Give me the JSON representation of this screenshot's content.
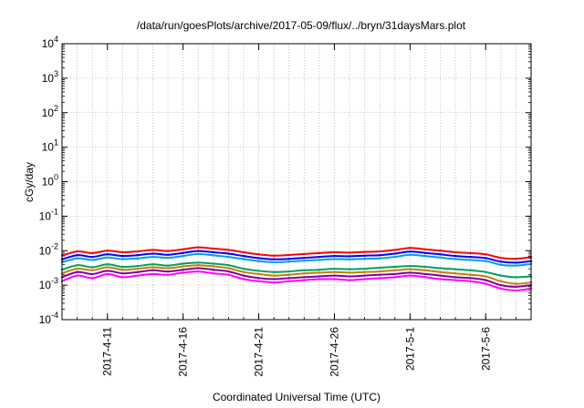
{
  "chart_data": {
    "type": "line",
    "title": "/data/run/goesPlots/archive/2017-05-09/flux/../bryn/31daysMars.plot",
    "xlabel": "Coordinated Universal Time (UTC)",
    "ylabel": "cGy/day",
    "yscale": "log",
    "ylim": [
      0.0001,
      10000
    ],
    "y_ticks": [
      {
        "value": 0.0001,
        "base": "10",
        "exp": "-4"
      },
      {
        "value": 0.001,
        "base": "10",
        "exp": "-3"
      },
      {
        "value": 0.01,
        "base": "10",
        "exp": "-2"
      },
      {
        "value": 0.1,
        "base": "10",
        "exp": "-1"
      },
      {
        "value": 1,
        "base": "10",
        "exp": "0"
      },
      {
        "value": 10,
        "base": "10",
        "exp": "1"
      },
      {
        "value": 100,
        "base": "10",
        "exp": "2"
      },
      {
        "value": 1000,
        "base": "10",
        "exp": "3"
      },
      {
        "value": 10000,
        "base": "10",
        "exp": "4"
      }
    ],
    "xlim": [
      "2017-04-08",
      "2017-05-09"
    ],
    "x_ticks": [
      "2017-4-11",
      "2017-4-16",
      "2017-4-21",
      "2017-4-26",
      "2017-5-1",
      "2017-5-6"
    ],
    "grid": true,
    "legend": "none",
    "x": [
      "2017-04-08",
      "2017-04-09",
      "2017-04-10",
      "2017-04-11",
      "2017-04-12",
      "2017-04-13",
      "2017-04-14",
      "2017-04-15",
      "2017-04-16",
      "2017-04-17",
      "2017-04-18",
      "2017-04-19",
      "2017-04-20",
      "2017-04-21",
      "2017-04-22",
      "2017-04-23",
      "2017-04-24",
      "2017-04-25",
      "2017-04-26",
      "2017-04-27",
      "2017-04-28",
      "2017-04-29",
      "2017-04-30",
      "2017-05-01",
      "2017-05-02",
      "2017-05-03",
      "2017-05-04",
      "2017-05-05",
      "2017-05-06",
      "2017-05-07",
      "2017-05-08",
      "2017-05-09"
    ],
    "series": [
      {
        "color": "#ff0000",
        "values": [
          0.0072,
          0.0095,
          0.0085,
          0.01,
          0.009,
          0.0095,
          0.0105,
          0.0098,
          0.011,
          0.0125,
          0.0115,
          0.0105,
          0.009,
          0.0078,
          0.0072,
          0.0075,
          0.008,
          0.0085,
          0.009,
          0.0088,
          0.0092,
          0.0095,
          0.0105,
          0.012,
          0.011,
          0.01,
          0.009,
          0.0085,
          0.0078,
          0.0062,
          0.0058,
          0.0065
        ]
      },
      {
        "color": "#0000ff",
        "values": [
          0.0056,
          0.0074,
          0.0066,
          0.0078,
          0.007,
          0.0074,
          0.0082,
          0.0076,
          0.0086,
          0.0098,
          0.009,
          0.0082,
          0.007,
          0.0061,
          0.0056,
          0.0058,
          0.0062,
          0.0066,
          0.007,
          0.0069,
          0.0072,
          0.0074,
          0.0082,
          0.0094,
          0.0086,
          0.0078,
          0.007,
          0.0066,
          0.0061,
          0.0048,
          0.0045,
          0.005
        ]
      },
      {
        "color": "#00a0e0",
        "values": [
          0.0046,
          0.006,
          0.0054,
          0.0063,
          0.0057,
          0.006,
          0.0066,
          0.0062,
          0.007,
          0.008,
          0.0073,
          0.0066,
          0.0057,
          0.005,
          0.0046,
          0.0048,
          0.0051,
          0.0054,
          0.0057,
          0.0056,
          0.0058,
          0.006,
          0.0066,
          0.0076,
          0.007,
          0.0063,
          0.0057,
          0.0054,
          0.005,
          0.0039,
          0.0037,
          0.0041
        ]
      },
      {
        "color": "#00a060",
        "values": [
          0.0028,
          0.0038,
          0.0033,
          0.004,
          0.0034,
          0.0036,
          0.004,
          0.0037,
          0.0042,
          0.0045,
          0.0042,
          0.0038,
          0.003,
          0.0026,
          0.0024,
          0.0025,
          0.0027,
          0.0028,
          0.003,
          0.0029,
          0.003,
          0.0032,
          0.0034,
          0.0036,
          0.0034,
          0.0031,
          0.0029,
          0.0027,
          0.0024,
          0.0019,
          0.0017,
          0.0018
        ]
      },
      {
        "color": "#c08000",
        "values": [
          0.0022,
          0.003,
          0.0027,
          0.0033,
          0.0028,
          0.003,
          0.0033,
          0.0031,
          0.0035,
          0.0038,
          0.0035,
          0.0031,
          0.0024,
          0.0021,
          0.0019,
          0.002,
          0.0022,
          0.0023,
          0.0024,
          0.0023,
          0.0024,
          0.0025,
          0.0027,
          0.0029,
          0.0027,
          0.0024,
          0.0022,
          0.002,
          0.0018,
          0.0013,
          0.0011,
          0.0012
        ]
      },
      {
        "color": "#8000a0",
        "values": [
          0.0017,
          0.0024,
          0.0021,
          0.0026,
          0.0022,
          0.0024,
          0.0027,
          0.0025,
          0.0028,
          0.0031,
          0.0028,
          0.0025,
          0.0019,
          0.0016,
          0.0015,
          0.0016,
          0.0017,
          0.0018,
          0.0019,
          0.0018,
          0.0019,
          0.002,
          0.0021,
          0.0023,
          0.0021,
          0.0019,
          0.0017,
          0.0016,
          0.0014,
          0.001,
          0.0009,
          0.001
        ]
      },
      {
        "color": "#ff00ff",
        "values": [
          0.0013,
          0.0019,
          0.0016,
          0.0021,
          0.0017,
          0.0019,
          0.0021,
          0.002,
          0.0023,
          0.0025,
          0.0022,
          0.002,
          0.0015,
          0.0013,
          0.0012,
          0.0013,
          0.0014,
          0.0015,
          0.0015,
          0.0014,
          0.0015,
          0.0016,
          0.0017,
          0.0019,
          0.0017,
          0.0015,
          0.0014,
          0.0013,
          0.0011,
          0.0008,
          0.0007,
          0.0008
        ]
      }
    ]
  }
}
